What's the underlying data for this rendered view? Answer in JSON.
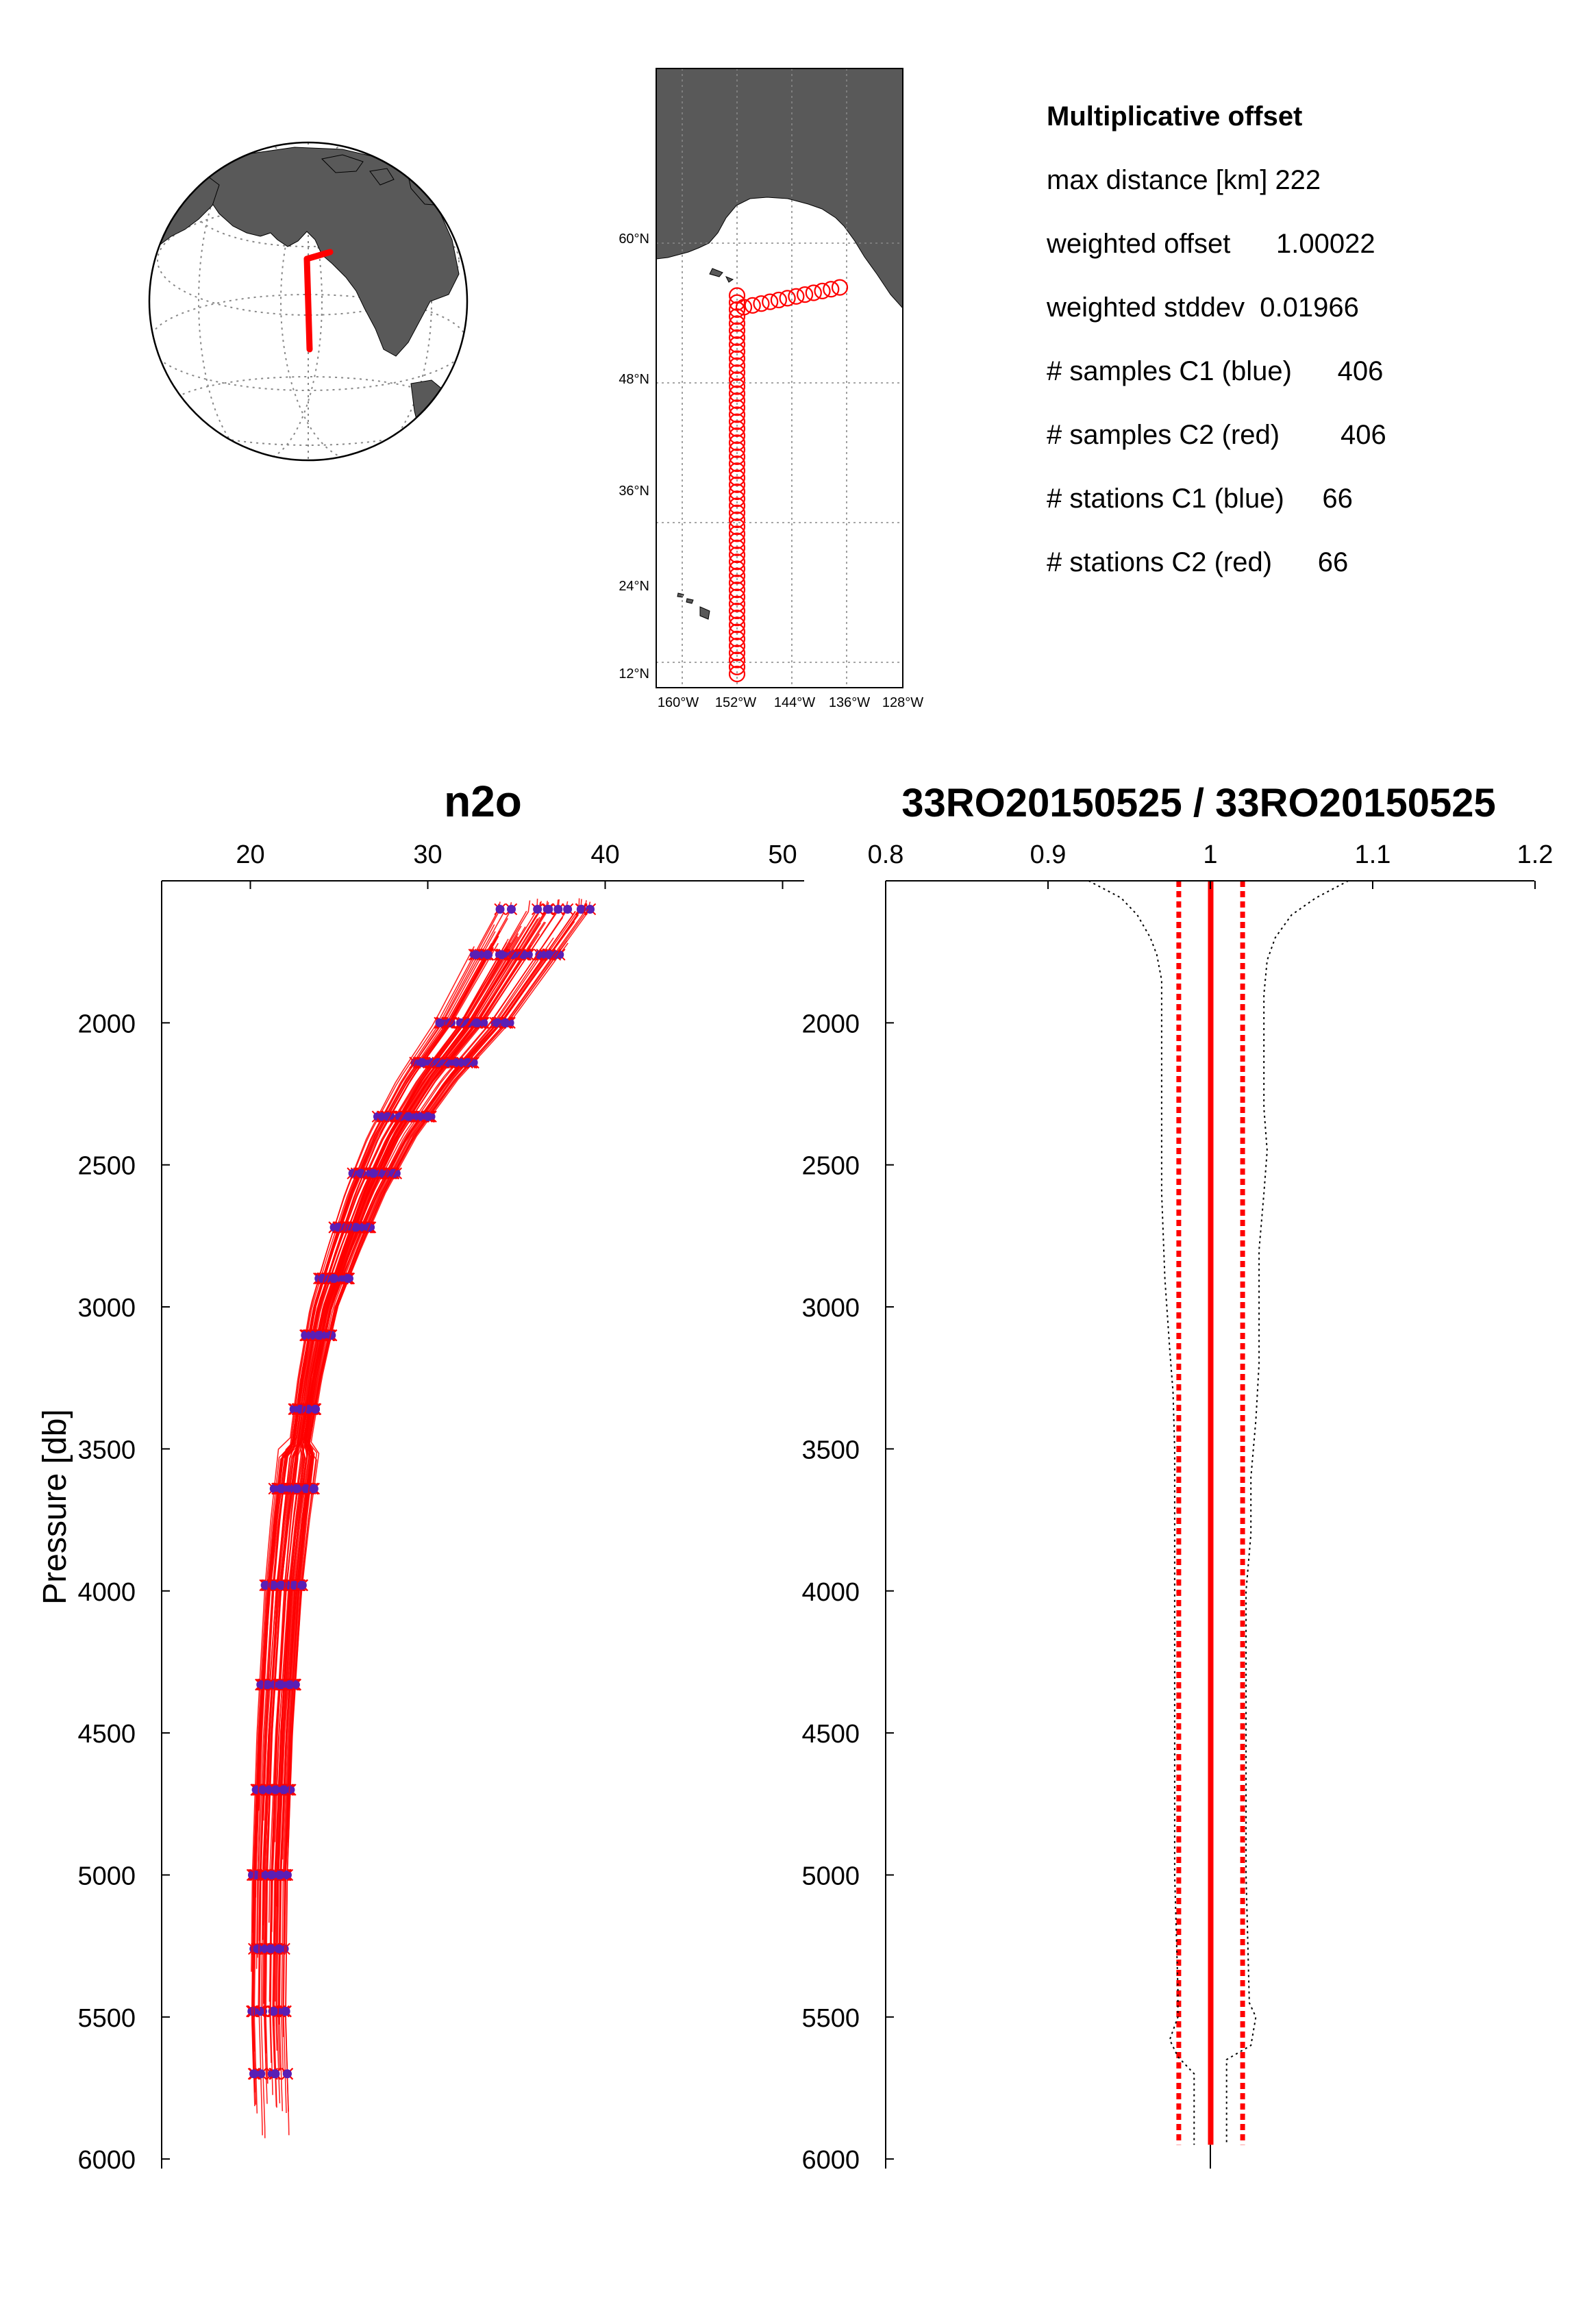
{
  "figure": {
    "background": "#ffffff"
  },
  "stats": {
    "title": "Multiplicative offset",
    "lines": [
      "max distance [km] 222",
      "weighted offset      1.00022",
      "weighted stddev  0.01966",
      "# samples C1 (blue)      406",
      "# samples C2 (red)        406",
      "# stations C1 (blue)     66",
      "# stations C2 (red)      66"
    ]
  },
  "globe": {
    "land_color": "#595959",
    "track_color": "#ff0000"
  },
  "map": {
    "land_color": "#595959",
    "marker_color": "#ff0000",
    "lat_labels": [
      "60°N",
      "48°N",
      "36°N",
      "24°N",
      "12°N"
    ],
    "lon_labels": [
      "160°W",
      "152°W",
      "144°W",
      "136°W",
      "128°W"
    ],
    "track_stations": {
      "meridional": {
        "lon": -152,
        "lat_from": 23,
        "lat_to": 55.5,
        "count": 55
      },
      "zonal": {
        "lat_from": 54.5,
        "lat_to": 56.2,
        "lon_from": -151,
        "lon_to": -137,
        "count": 12
      }
    }
  },
  "chart_data": [
    {
      "type": "line",
      "title": "n2o",
      "xlabel": "",
      "ylabel": "Pressure  [db]",
      "xlim": [
        15,
        51
      ],
      "ylim": [
        1500,
        6000
      ],
      "y_inverted": true,
      "x_ticks": [
        "20",
        "30",
        "40",
        "50"
      ],
      "y_ticks": [
        "2000",
        "2500",
        "3000",
        "3500",
        "4000",
        "4500",
        "5000",
        "5500",
        "6000"
      ],
      "series": [
        {
          "color": "#ff0000",
          "marker_color": "#5a1fb5",
          "profile_model": {
            "pressure": [
              1600,
              1800,
              2000,
              2200,
              2400,
              2600,
              2800,
              3000,
              3250,
              3500,
              3750,
              4000,
              4500,
              5000,
              5500,
              5900
            ],
            "n2o_mean": [
              36.5,
              34.5,
              32.5,
              30.0,
              28.0,
              26.5,
              25.3,
              24.2,
              23.4,
              22.8,
              22.3,
              21.9,
              21.4,
              21.1,
              21.0,
              21.2
            ],
            "stations": 66,
            "samples": 406
          }
        }
      ]
    },
    {
      "type": "line",
      "title": "33RO20150525 / 33RO20150525",
      "xlabel": "",
      "ylabel": "",
      "xlim": [
        0.8,
        1.2
      ],
      "ylim": [
        1500,
        6000
      ],
      "y_inverted": true,
      "x_ticks": [
        "0.8",
        "0.9",
        "1",
        "1.1",
        "1.2"
      ],
      "y_ticks": [
        "2000",
        "2500",
        "3000",
        "3500",
        "4000",
        "4500",
        "5000",
        "5500",
        "6000"
      ],
      "series": [
        {
          "role": "weighted offset",
          "color": "#ff0000",
          "x": [
            1.00022,
            1.00022
          ],
          "y": [
            1500,
            5950
          ]
        },
        {
          "role": "offset - stddev",
          "color": "#ff0000",
          "x": [
            0.98056,
            0.98056
          ],
          "y": [
            1500,
            5950
          ]
        },
        {
          "role": "offset + stddev",
          "color": "#ff0000",
          "x": [
            1.01988,
            1.01988
          ],
          "y": [
            1500,
            5950
          ]
        },
        {
          "role": "envelope low",
          "color": "#000000",
          "x": [
            0.925,
            0.945,
            0.955,
            0.963,
            0.967,
            0.97,
            0.97,
            0.97,
            0.97,
            0.97,
            0.97,
            0.972,
            0.975,
            0.977,
            0.978,
            0.978,
            0.978,
            0.978,
            0.978,
            0.978,
            0.978,
            0.978,
            0.98,
            0.98,
            0.975,
            0.98,
            0.99,
            0.99
          ],
          "y": [
            1500,
            1560,
            1620,
            1700,
            1760,
            1850,
            2000,
            2200,
            2340,
            2450,
            2600,
            2900,
            3150,
            3300,
            3500,
            3800,
            4000,
            4200,
            4400,
            4600,
            4800,
            5000,
            5400,
            5500,
            5580,
            5640,
            5700,
            5950
          ]
        },
        {
          "role": "envelope high",
          "color": "#000000",
          "x": [
            1.085,
            1.065,
            1.05,
            1.04,
            1.035,
            1.033,
            1.033,
            1.033,
            1.035,
            1.033,
            1.03,
            1.03,
            1.03,
            1.028,
            1.025,
            1.025,
            1.022,
            1.022,
            1.022,
            1.022,
            1.022,
            1.022,
            1.024,
            1.028,
            1.025,
            1.01,
            1.01
          ],
          "y": [
            1500,
            1560,
            1620,
            1700,
            1780,
            1900,
            2100,
            2300,
            2450,
            2600,
            2800,
            3000,
            3200,
            3400,
            3600,
            3800,
            4000,
            4200,
            4400,
            4600,
            4800,
            5000,
            5450,
            5500,
            5600,
            5650,
            5950
          ]
        }
      ]
    }
  ]
}
